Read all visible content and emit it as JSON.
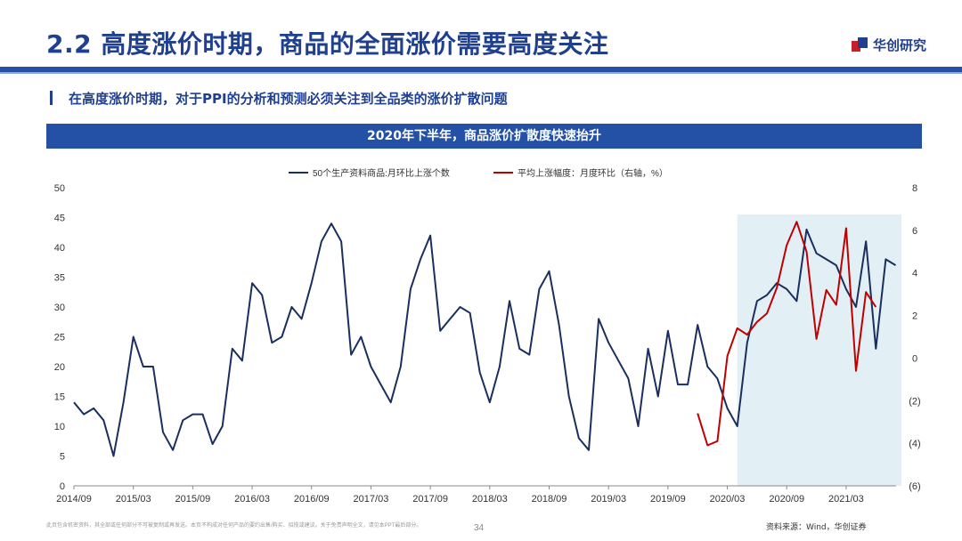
{
  "header": {
    "title": "2.2 高度涨价时期，商品的全面涨价需要高度关注",
    "logo_text": "华创研究",
    "subtitle": "在高度涨价时期，对于PPI的分析和预测必须关注到全品类的涨价扩散问题"
  },
  "chart_banner": "2020年下半年，商品涨价扩散度快速抬升",
  "footer": {
    "disclaimer": "此页包含机密资料，其全部或任何部分不可被复制或再发送。本页不构成对任何产品的要约出售/购买、招揽或建议。关于免责声明全文，请见本PPT最后部分。",
    "page": "34",
    "source": "资料来源：Wind，华创证券"
  },
  "colors": {
    "brand_blue": "#1f3f8f",
    "bar_blue": "#2451a6",
    "series_navy": "#1b2f5e",
    "series_red": "#c00000",
    "shade": "#e2eff4",
    "logo_red": "#c8202a"
  },
  "chart_data": {
    "type": "line",
    "legend_position": "top",
    "x_ticks": [
      "2014/09",
      "2015/03",
      "2015/09",
      "2016/03",
      "2016/09",
      "2017/03",
      "2017/09",
      "2018/03",
      "2018/09",
      "2019/03",
      "2019/09",
      "2020/03",
      "2020/09",
      "2021/03"
    ],
    "y_left": {
      "range": [
        0,
        50
      ],
      "ticks": [
        "0",
        "5",
        "10",
        "15",
        "20",
        "25",
        "30",
        "35",
        "40",
        "45",
        "50"
      ]
    },
    "y_right": {
      "range": [
        -6,
        8
      ],
      "ticks": [
        "(6)",
        "(4)",
        "(2)",
        "0",
        "2",
        "4",
        "6",
        "8"
      ]
    },
    "shaded_region": {
      "start": "2020/04",
      "end": "2021/08"
    },
    "series": [
      {
        "name": "50个生产资料商品:月环比上涨个数",
        "axis": "left",
        "start": "2014/09",
        "values": [
          14,
          12,
          13,
          11,
          5,
          14,
          25,
          20,
          20,
          9,
          6,
          11,
          12,
          12,
          7,
          10,
          23,
          21,
          34,
          32,
          24,
          25,
          30,
          28,
          34,
          41,
          44,
          41,
          22,
          25,
          20,
          17,
          14,
          20,
          33,
          38,
          42,
          26,
          28,
          30,
          29,
          19,
          14,
          20,
          31,
          23,
          22,
          33,
          36,
          27,
          15,
          8,
          6,
          28,
          24,
          21,
          18,
          10,
          23,
          15,
          26,
          17,
          17,
          27,
          20,
          18,
          13,
          10,
          24,
          31,
          32,
          34,
          33,
          31,
          43,
          39,
          38,
          37,
          33,
          30,
          41,
          23,
          38,
          37
        ]
      },
      {
        "name": "平均上涨幅度：月度环比（右轴，%）",
        "axis": "right",
        "start": "2019/12",
        "values": [
          -2.6,
          -4.1,
          -3.9,
          0.1,
          1.4,
          1.1,
          1.7,
          2.1,
          3.3,
          5.3,
          6.4,
          5,
          0.9,
          3.2,
          2.5,
          6.1,
          -0.6,
          3.1,
          2.4
        ]
      }
    ]
  }
}
